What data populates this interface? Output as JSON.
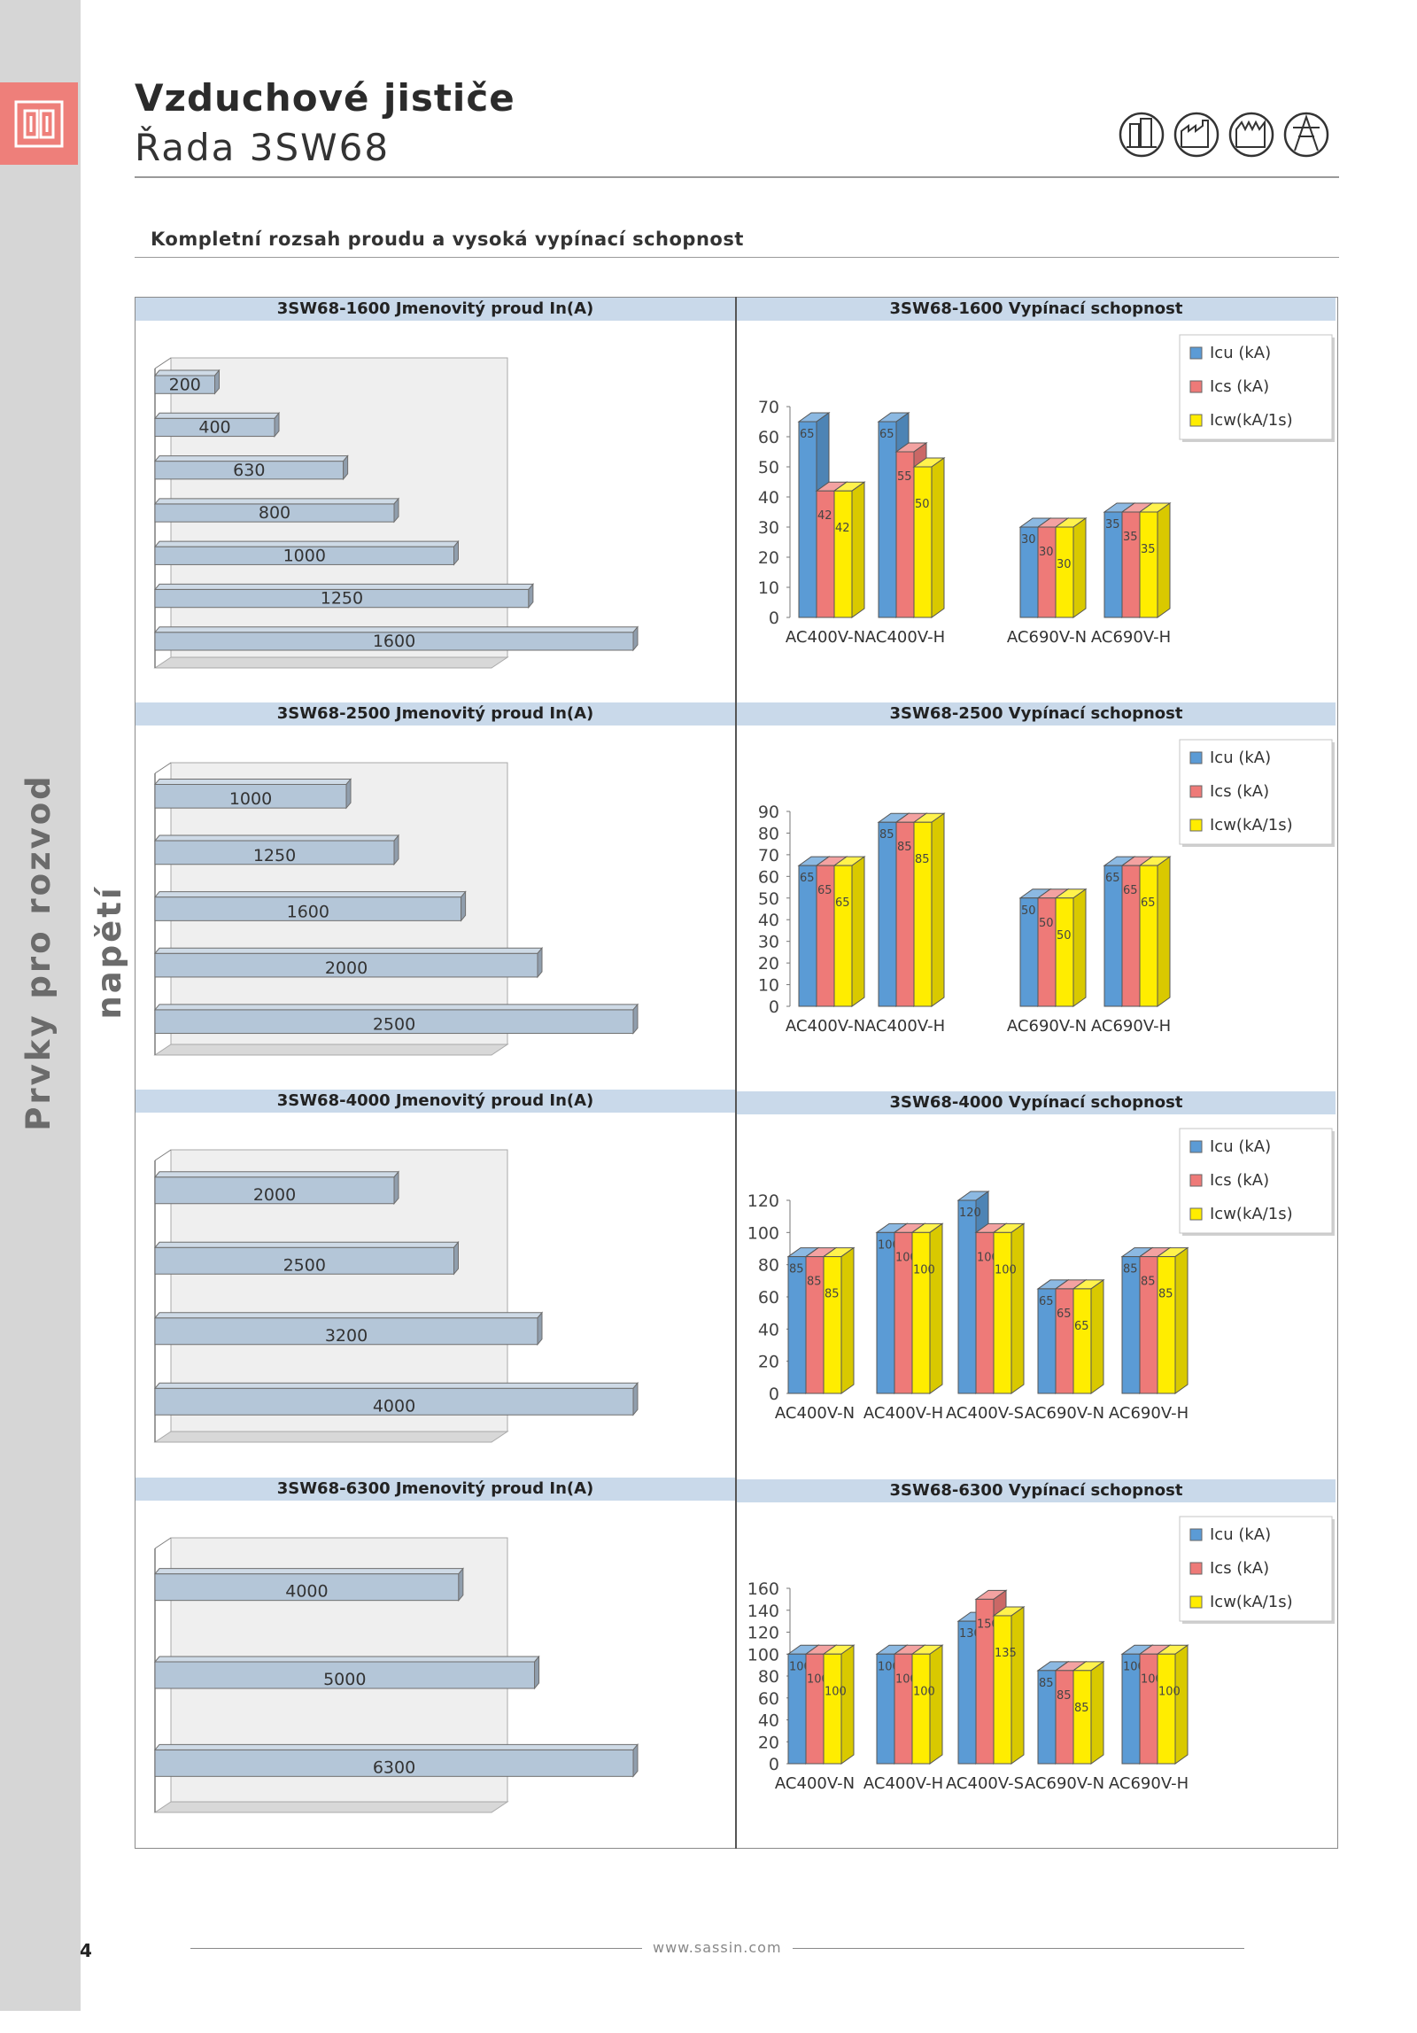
{
  "page": {
    "title": "Vzduchové jističe",
    "subtitle": "Řada 3SW68",
    "section_heading": "Kompletní rozsah proudu a vysoká vypínací schopnost",
    "side_label": "Prvky pro rozvod napětí",
    "page_number": "4",
    "footer_url": "www.sassin.com",
    "badge_icons": [
      "building-icon",
      "factory-icon",
      "power-plant-icon",
      "electrical-tower-icon"
    ]
  },
  "colors": {
    "icu": "#5b9bd5",
    "ics": "#ee7a78",
    "icw": "#ffed00",
    "bar": "#b4c6d8",
    "header": "#c9d9ea",
    "accent": "#ee7f7a"
  },
  "legend": {
    "icu": "Icu (kA)",
    "ics": "Ics (kA)",
    "icw": "Icw(kA/1s)"
  },
  "chart_data": [
    {
      "id": "rated-1600",
      "type": "bar",
      "orientation": "horizontal",
      "title": "3SW68-1600 Jmenovitý proud In(A)",
      "categories": [
        "200",
        "400",
        "630",
        "800",
        "1000",
        "1250",
        "1600"
      ],
      "values": [
        200,
        400,
        630,
        800,
        1000,
        1250,
        1600
      ]
    },
    {
      "id": "break-1600",
      "type": "bar",
      "title": "3SW68-1600 Vypínací schopnost",
      "categories": [
        "AC400V-N",
        "AC400V-H",
        "AC690V-N",
        "AC690V-H"
      ],
      "ylim": [
        0,
        70
      ],
      "yticks": [
        0,
        10,
        20,
        30,
        40,
        50,
        60,
        70
      ],
      "series": [
        {
          "name": "Icu (kA)",
          "values": [
            65,
            65,
            30,
            35
          ]
        },
        {
          "name": "Ics (kA)",
          "values": [
            42,
            55,
            30,
            35
          ]
        },
        {
          "name": "Icw(kA/1s)",
          "values": [
            42,
            50,
            30,
            35
          ]
        }
      ]
    },
    {
      "id": "rated-2500",
      "type": "bar",
      "orientation": "horizontal",
      "title": "3SW68-2500 Jmenovitý proud In(A)",
      "categories": [
        "1000",
        "1250",
        "1600",
        "2000",
        "2500"
      ],
      "values": [
        1000,
        1250,
        1600,
        2000,
        2500
      ]
    },
    {
      "id": "break-2500",
      "type": "bar",
      "title": "3SW68-2500 Vypínací schopnost",
      "categories": [
        "AC400V-N",
        "AC400V-H",
        "AC690V-N",
        "AC690V-H"
      ],
      "ylim": [
        0,
        90
      ],
      "yticks": [
        0,
        10,
        20,
        30,
        40,
        50,
        60,
        70,
        80,
        90
      ],
      "series": [
        {
          "name": "Icu (kA)",
          "values": [
            65,
            85,
            50,
            65
          ]
        },
        {
          "name": "Ics (kA)",
          "values": [
            65,
            85,
            50,
            65
          ]
        },
        {
          "name": "Icw(kA/1s)",
          "values": [
            65,
            85,
            50,
            65
          ]
        }
      ]
    },
    {
      "id": "rated-4000",
      "type": "bar",
      "orientation": "horizontal",
      "title": "3SW68-4000 Jmenovitý proud In(A)",
      "categories": [
        "2000",
        "2500",
        "3200",
        "4000"
      ],
      "values": [
        2000,
        2500,
        3200,
        4000
      ]
    },
    {
      "id": "break-4000",
      "type": "bar",
      "title": "3SW68-4000 Vypínací schopnost",
      "categories": [
        "AC400V-N",
        "AC400V-H",
        "AC400V-S",
        "AC690V-N",
        "AC690V-H"
      ],
      "ylim": [
        0,
        120
      ],
      "yticks": [
        0,
        20,
        40,
        60,
        80,
        100,
        120
      ],
      "series": [
        {
          "name": "Icu (kA)",
          "values": [
            85,
            100,
            120,
            65,
            85
          ]
        },
        {
          "name": "Ics (kA)",
          "values": [
            85,
            100,
            100,
            65,
            85
          ]
        },
        {
          "name": "Icw(kA/1s)",
          "values": [
            85,
            100,
            100,
            65,
            85
          ]
        }
      ]
    },
    {
      "id": "rated-6300",
      "type": "bar",
      "orientation": "horizontal",
      "title": "3SW68-6300 Jmenovitý proud In(A)",
      "categories": [
        "4000",
        "5000",
        "6300"
      ],
      "values": [
        4000,
        5000,
        6300
      ]
    },
    {
      "id": "break-6300",
      "type": "bar",
      "title": "3SW68-6300 Vypínací schopnost",
      "categories": [
        "AC400V-N",
        "AC400V-H",
        "AC400V-S",
        "AC690V-N",
        "AC690V-H"
      ],
      "ylim": [
        0,
        160
      ],
      "yticks": [
        0,
        20,
        40,
        60,
        80,
        100,
        120,
        140,
        160
      ],
      "series": [
        {
          "name": "Icu (kA)",
          "values": [
            100,
            100,
            130,
            85,
            100
          ]
        },
        {
          "name": "Ics (kA)",
          "values": [
            100,
            100,
            150,
            85,
            100
          ]
        },
        {
          "name": "Icw(kA/1s)",
          "values": [
            100,
            100,
            135,
            85,
            100
          ]
        }
      ]
    }
  ]
}
